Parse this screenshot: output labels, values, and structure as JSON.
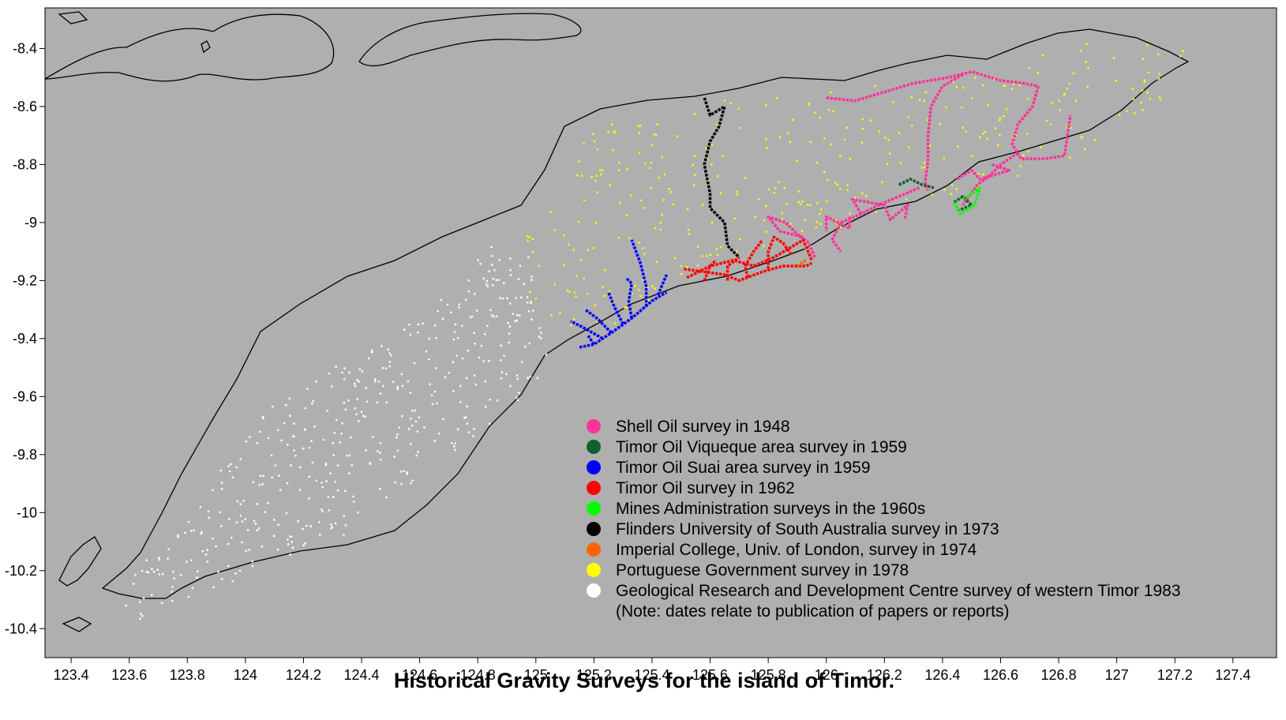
{
  "chart_data": {
    "type": "scatter",
    "title": "Historical Gravity Surveys for the island of Timor.",
    "xlim": [
      123.31,
      127.55
    ],
    "ylim": [
      -10.5,
      -8.26
    ],
    "x_ticks": [
      "123.4",
      "123.6",
      "123.8",
      "124",
      "124.2",
      "124.4",
      "124.6",
      "124.8",
      "125",
      "125.2",
      "125.4",
      "125.6",
      "125.8",
      "126",
      "126.2",
      "126.4",
      "126.6",
      "126.8",
      "127",
      "127.2",
      "127.4"
    ],
    "y_ticks": [
      "-8.4",
      "-8.6",
      "-8.8",
      "-9",
      "-9.2",
      "-9.4",
      "-9.6",
      "-9.8",
      "-10",
      "-10.2",
      "-10.4"
    ],
    "background_color": "#afafaf",
    "legend_placement": "bottom-right",
    "legend": [
      {
        "label": "Shell Oil survey in 1948",
        "color": "#ff3399"
      },
      {
        "label": "Timor Oil Viqueque area survey in 1959",
        "color": "#106030"
      },
      {
        "label": "Timor Oil Suai area survey in 1959",
        "color": "#0000ff"
      },
      {
        "label": "Timor Oil survey in 1962",
        "color": "#ff0000"
      },
      {
        "label": "Mines Administration surveys in the 1960s",
        "color": "#00ff00"
      },
      {
        "label": "Flinders University of South Australia survey in 1973",
        "color": "#000000"
      },
      {
        "label": "Imperial College, Univ. of London, survey in 1974",
        "color": "#ff6600"
      },
      {
        "label": "Portuguese Government survey in 1978",
        "color": "#ffff00"
      },
      {
        "label": "Geological Research and Development Centre survey of western Timor 1983",
        "color": "#ffffff"
      }
    ],
    "note": "(Note: dates relate to publication of papers or reports)",
    "series": [
      {
        "color": "#ff3399",
        "lines": [
          [
            [
              126.0,
              -8.57
            ],
            [
              126.1,
              -8.58
            ],
            [
              126.2,
              -8.55
            ],
            [
              126.3,
              -8.52
            ],
            [
              126.42,
              -8.5
            ],
            [
              126.5,
              -8.48
            ],
            [
              126.6,
              -8.51
            ],
            [
              126.68,
              -8.52
            ],
            [
              126.73,
              -8.53
            ]
          ],
          [
            [
              126.73,
              -8.53
            ],
            [
              126.71,
              -8.6
            ],
            [
              126.66,
              -8.66
            ],
            [
              126.64,
              -8.73
            ],
            [
              126.67,
              -8.78
            ],
            [
              126.75,
              -8.78
            ],
            [
              126.82,
              -8.77
            ],
            [
              126.83,
              -8.7
            ],
            [
              126.84,
              -8.63
            ]
          ],
          [
            [
              126.47,
              -8.49
            ],
            [
              126.4,
              -8.53
            ],
            [
              126.36,
              -8.6
            ],
            [
              126.35,
              -8.7
            ],
            [
              126.35,
              -8.79
            ],
            [
              126.34,
              -8.86
            ],
            [
              126.35,
              -8.89
            ]
          ],
          [
            [
              126.66,
              -8.76
            ],
            [
              126.6,
              -8.8
            ],
            [
              126.56,
              -8.84
            ],
            [
              126.52,
              -8.87
            ],
            [
              126.47,
              -8.94
            ]
          ],
          [
            [
              126.32,
              -8.88
            ],
            [
              126.25,
              -8.91
            ],
            [
              126.18,
              -8.94
            ],
            [
              126.12,
              -8.97
            ],
            [
              126.05,
              -9.0
            ],
            [
              126.02,
              -9.06
            ],
            [
              126.05,
              -9.1
            ]
          ],
          [
            [
              126.12,
              -8.97
            ],
            [
              126.09,
              -8.92
            ],
            [
              126.2,
              -8.94
            ],
            [
              126.22,
              -8.99
            ],
            [
              126.28,
              -8.94
            ],
            [
              126.27,
              -8.99
            ]
          ],
          [
            [
              126.08,
              -8.98
            ],
            [
              126.08,
              -9.02
            ],
            [
              126.0,
              -8.98
            ],
            [
              126.0,
              -9.03
            ]
          ],
          [
            [
              125.96,
              -9.12
            ],
            [
              125.94,
              -9.07
            ],
            [
              125.9,
              -9.04
            ],
            [
              125.86,
              -9.0
            ],
            [
              125.8,
              -8.98
            ],
            [
              125.84,
              -9.03
            ],
            [
              125.92,
              -9.05
            ]
          ],
          [
            [
              126.57,
              -8.8
            ],
            [
              126.63,
              -8.82
            ],
            [
              126.53,
              -8.85
            ],
            [
              126.5,
              -8.82
            ],
            [
              126.45,
              -8.85
            ]
          ]
        ]
      },
      {
        "color": "#106030",
        "lines": [
          [
            [
              126.25,
              -8.87
            ],
            [
              126.29,
              -8.85
            ],
            [
              126.33,
              -8.87
            ],
            [
              126.37,
              -8.88
            ]
          ],
          [
            [
              126.44,
              -8.93
            ],
            [
              126.47,
              -8.91
            ],
            [
              126.5,
              -8.94
            ],
            [
              126.45,
              -8.96
            ]
          ]
        ]
      },
      {
        "color": "#0000ff",
        "lines": [
          [
            [
              125.15,
              -9.43
            ],
            [
              125.2,
              -9.42
            ],
            [
              125.26,
              -9.38
            ],
            [
              125.33,
              -9.33
            ],
            [
              125.4,
              -9.27
            ],
            [
              125.45,
              -9.24
            ]
          ],
          [
            [
              125.26,
              -9.38
            ],
            [
              125.21,
              -9.33
            ],
            [
              125.17,
              -9.3
            ]
          ],
          [
            [
              125.3,
              -9.35
            ],
            [
              125.27,
              -9.29
            ],
            [
              125.25,
              -9.24
            ]
          ],
          [
            [
              125.33,
              -9.33
            ],
            [
              125.32,
              -9.27
            ],
            [
              125.33,
              -9.21
            ],
            [
              125.31,
              -9.19
            ]
          ],
          [
            [
              125.38,
              -9.29
            ],
            [
              125.38,
              -9.22
            ],
            [
              125.36,
              -9.14
            ],
            [
              125.33,
              -9.06
            ]
          ],
          [
            [
              125.42,
              -9.25
            ],
            [
              125.45,
              -9.18
            ]
          ],
          [
            [
              125.23,
              -9.4
            ],
            [
              125.16,
              -9.36
            ],
            [
              125.12,
              -9.34
            ]
          ],
          [
            [
              125.2,
              -9.42
            ],
            [
              125.18,
              -9.39
            ]
          ]
        ]
      },
      {
        "color": "#ff0000",
        "lines": [
          [
            [
              125.52,
              -9.19
            ],
            [
              125.6,
              -9.15
            ],
            [
              125.68,
              -9.13
            ],
            [
              125.75,
              -9.15
            ],
            [
              125.82,
              -9.12
            ],
            [
              125.87,
              -9.09
            ],
            [
              125.92,
              -9.06
            ],
            [
              125.95,
              -9.13
            ]
          ],
          [
            [
              125.51,
              -9.16
            ],
            [
              125.58,
              -9.17
            ],
            [
              125.65,
              -9.18
            ],
            [
              125.7,
              -9.2
            ],
            [
              125.78,
              -9.17
            ],
            [
              125.85,
              -9.15
            ],
            [
              125.93,
              -9.15
            ],
            [
              125.95,
              -9.14
            ]
          ],
          [
            [
              125.58,
              -9.2
            ],
            [
              125.6,
              -9.15
            ],
            [
              125.62,
              -9.13
            ]
          ],
          [
            [
              125.66,
              -9.2
            ],
            [
              125.66,
              -9.15
            ],
            [
              125.7,
              -9.12
            ]
          ],
          [
            [
              125.73,
              -9.19
            ],
            [
              125.72,
              -9.15
            ],
            [
              125.75,
              -9.1
            ],
            [
              125.78,
              -9.06
            ]
          ],
          [
            [
              125.8,
              -9.16
            ],
            [
              125.8,
              -9.1
            ],
            [
              125.82,
              -9.05
            ],
            [
              125.85,
              -9.07
            ],
            [
              125.88,
              -9.11
            ]
          ]
        ]
      },
      {
        "color": "#00ff00",
        "lines": [
          [
            [
              126.44,
              -8.93
            ],
            [
              126.46,
              -8.97
            ],
            [
              126.51,
              -8.94
            ],
            [
              126.53,
              -8.88
            ],
            [
              126.5,
              -8.9
            ],
            [
              126.47,
              -8.92
            ]
          ]
        ]
      },
      {
        "color": "#000000",
        "lines": [
          [
            [
              125.58,
              -8.57
            ],
            [
              125.6,
              -8.63
            ],
            [
              125.65,
              -8.6
            ],
            [
              125.63,
              -8.67
            ],
            [
              125.6,
              -8.72
            ],
            [
              125.58,
              -8.8
            ],
            [
              125.6,
              -8.9
            ],
            [
              125.6,
              -8.95
            ],
            [
              125.65,
              -9.0
            ],
            [
              125.66,
              -9.08
            ],
            [
              125.7,
              -9.12
            ]
          ]
        ]
      },
      {
        "color": "#ff6600",
        "lines": [
          [
            [
              125.9,
              -9.15
            ],
            [
              125.93,
              -9.13
            ]
          ]
        ]
      }
    ],
    "scatter_regions": [
      {
        "color": "#ffff00",
        "polygon": [
          [
            124.95,
            -9.02
          ],
          [
            125.05,
            -8.88
          ],
          [
            125.15,
            -8.73
          ],
          [
            125.25,
            -8.63
          ],
          [
            125.5,
            -8.6
          ],
          [
            125.7,
            -8.57
          ],
          [
            126.0,
            -8.53
          ],
          [
            126.5,
            -8.48
          ],
          [
            127.0,
            -8.35
          ],
          [
            127.3,
            -8.42
          ],
          [
            127.2,
            -8.55
          ],
          [
            127.0,
            -8.72
          ],
          [
            126.6,
            -8.87
          ],
          [
            126.2,
            -8.95
          ],
          [
            125.9,
            -9.12
          ],
          [
            125.7,
            -9.2
          ],
          [
            125.5,
            -9.22
          ],
          [
            125.3,
            -9.35
          ],
          [
            125.1,
            -9.38
          ],
          [
            124.95,
            -9.25
          ]
        ],
        "count": 360
      },
      {
        "color": "#ffffff",
        "polygon": [
          [
            123.55,
            -10.34
          ],
          [
            123.6,
            -10.22
          ],
          [
            123.75,
            -10.08
          ],
          [
            123.9,
            -9.88
          ],
          [
            124.0,
            -9.7
          ],
          [
            124.2,
            -9.55
          ],
          [
            124.5,
            -9.4
          ],
          [
            124.7,
            -9.22
          ],
          [
            124.85,
            -9.08
          ],
          [
            124.98,
            -9.12
          ],
          [
            125.0,
            -9.3
          ],
          [
            125.05,
            -9.45
          ],
          [
            125.0,
            -9.55
          ],
          [
            124.85,
            -9.7
          ],
          [
            124.6,
            -9.9
          ],
          [
            124.35,
            -10.08
          ],
          [
            124.05,
            -10.2
          ],
          [
            123.8,
            -10.3
          ],
          [
            123.65,
            -10.37
          ]
        ],
        "count": 440
      }
    ]
  }
}
